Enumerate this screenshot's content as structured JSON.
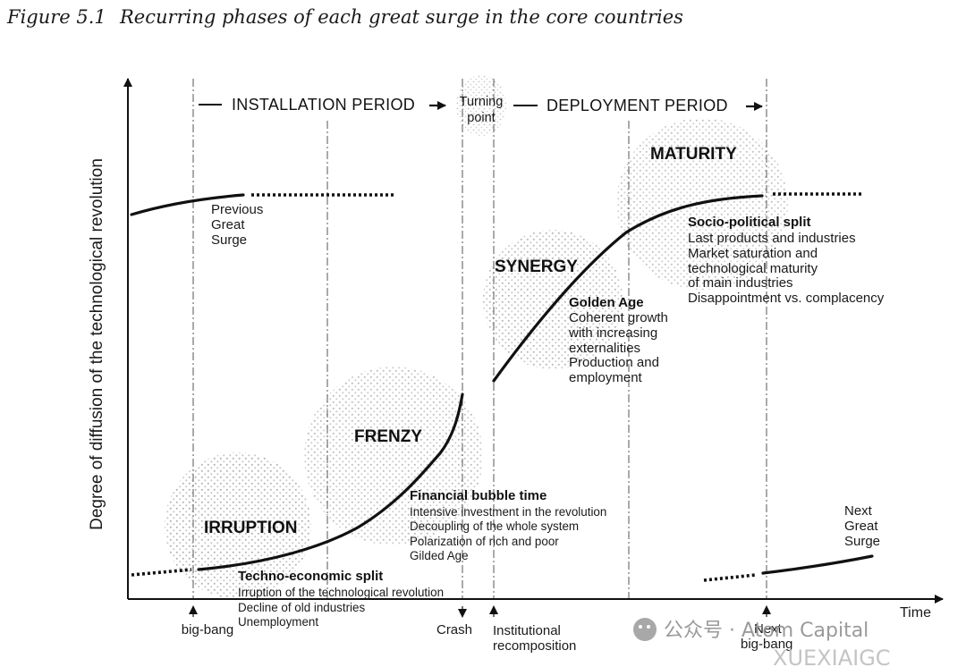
{
  "figure": {
    "caption_number": "Figure 5.1",
    "caption_text": "Recurring phases of each great surge in the core countries"
  },
  "axes": {
    "y_label": "Degree of diffusion of the technological revolution",
    "x_label": "Time"
  },
  "periods": {
    "installation": "INSTALLATION PERIOD",
    "turning_point": [
      "Turning",
      "point"
    ],
    "deployment": "DEPLOYMENT PERIOD"
  },
  "phases": {
    "irruption": "IRRUPTION",
    "frenzy": "FRENZY",
    "synergy": "SYNERGY",
    "maturity": "MATURITY"
  },
  "previous_surge": [
    "Previous",
    "Great",
    "Surge"
  ],
  "next_surge": [
    "Next",
    "Great",
    "Surge"
  ],
  "techno_economic": {
    "title": "Techno-economic split",
    "lines": [
      "Irruption of the technological revolution",
      "Decline of old industries",
      "Unemployment"
    ]
  },
  "financial_bubble": {
    "title": "Financial bubble time",
    "lines": [
      "Intensive investment in the revolution",
      "Decoupling of the whole system",
      "Polarization of rich and poor",
      "Gilded Age"
    ]
  },
  "golden_age": {
    "title": "Golden Age",
    "lines": [
      "Coherent growth",
      "with increasing",
      "externalities",
      "Production and",
      "employment"
    ]
  },
  "socio_political": {
    "title": "Socio-political split",
    "lines": [
      "Last products and industries",
      "Market saturation and",
      "technological maturity",
      "of main industries",
      "Disappointment vs. complacency"
    ]
  },
  "markers": {
    "big_bang": "big-bang",
    "crash": "Crash",
    "institutional": [
      "Institutional",
      "recomposition"
    ],
    "next_big_bang": [
      "Next",
      "big-bang"
    ]
  },
  "watermark": {
    "text": "公众号 · Atom Capital",
    "faint": "XUEXIAIGC"
  }
}
